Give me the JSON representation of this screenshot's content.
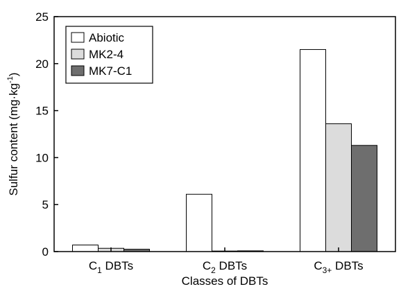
{
  "chart_data": {
    "type": "bar",
    "xlabel": "Classes of DBTs",
    "ylabel": "Sulfur content (mg·kg",
    "ylabel_sup": "-1",
    "ylabel_end": ")",
    "ylim": [
      0,
      25
    ],
    "yticks": [
      "0",
      "5",
      "10",
      "15",
      "20",
      "25"
    ],
    "categories": [
      {
        "pre": "C",
        "sub": "1",
        "post": " DBTs"
      },
      {
        "pre": "C",
        "sub": "2",
        "post": " DBTs"
      },
      {
        "pre": "C",
        "sub": "3+",
        "post": " DBTs"
      }
    ],
    "series": [
      {
        "name": "Abiotic",
        "color": "#ffffff",
        "values": [
          0.7,
          6.1,
          21.5
        ]
      },
      {
        "name": "MK2-4",
        "color": "#dcdcdc",
        "values": [
          0.35,
          0.0,
          13.6
        ]
      },
      {
        "name": "MK7-C1",
        "color": "#6e6e6e",
        "values": [
          0.25,
          0.08,
          11.3
        ]
      }
    ],
    "legend_position": "top-left",
    "grid": false
  }
}
